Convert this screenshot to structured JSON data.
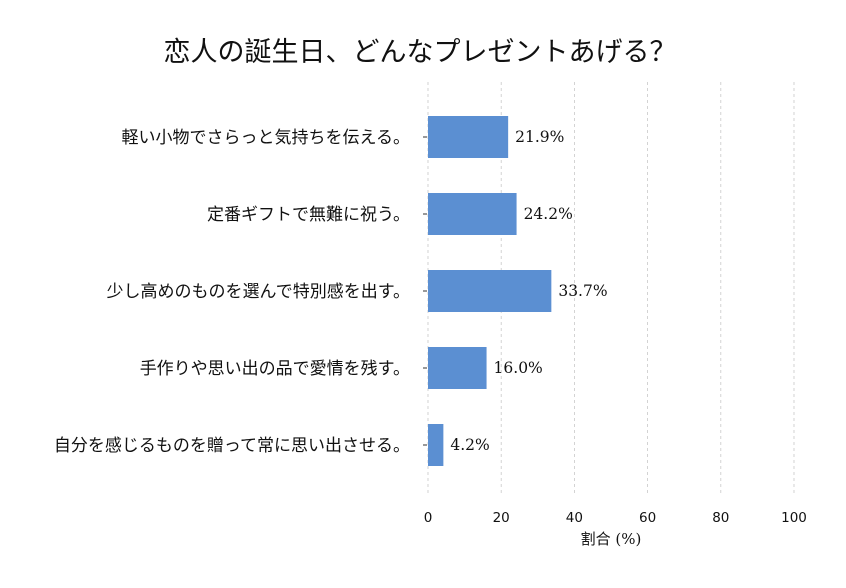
{
  "chart_data": {
    "type": "bar",
    "orientation": "horizontal",
    "title": "恋人の誕生日、どんなプレゼントあげる？",
    "xlabel": "割合 (%)",
    "ylabel": "",
    "xlim": [
      0,
      100
    ],
    "xticks": [
      "0",
      "20",
      "40",
      "60",
      "80",
      "100"
    ],
    "grid": true,
    "categories": [
      "軽い小物でさらっと気持ちを伝える。",
      "定番ギフトで無難に祝う。",
      "少し高めのものを選んで特別感を出す。",
      "手作りや思い出の品で愛情を残す。",
      "自分を感じるものを贈って常に思い出させる。"
    ],
    "values": [
      21.9,
      24.2,
      33.7,
      16.0,
      4.2
    ],
    "value_labels": [
      "21.9%",
      "24.2%",
      "33.7%",
      "16.0%",
      "4.2%"
    ],
    "bar_color": "#5b8fd2"
  }
}
